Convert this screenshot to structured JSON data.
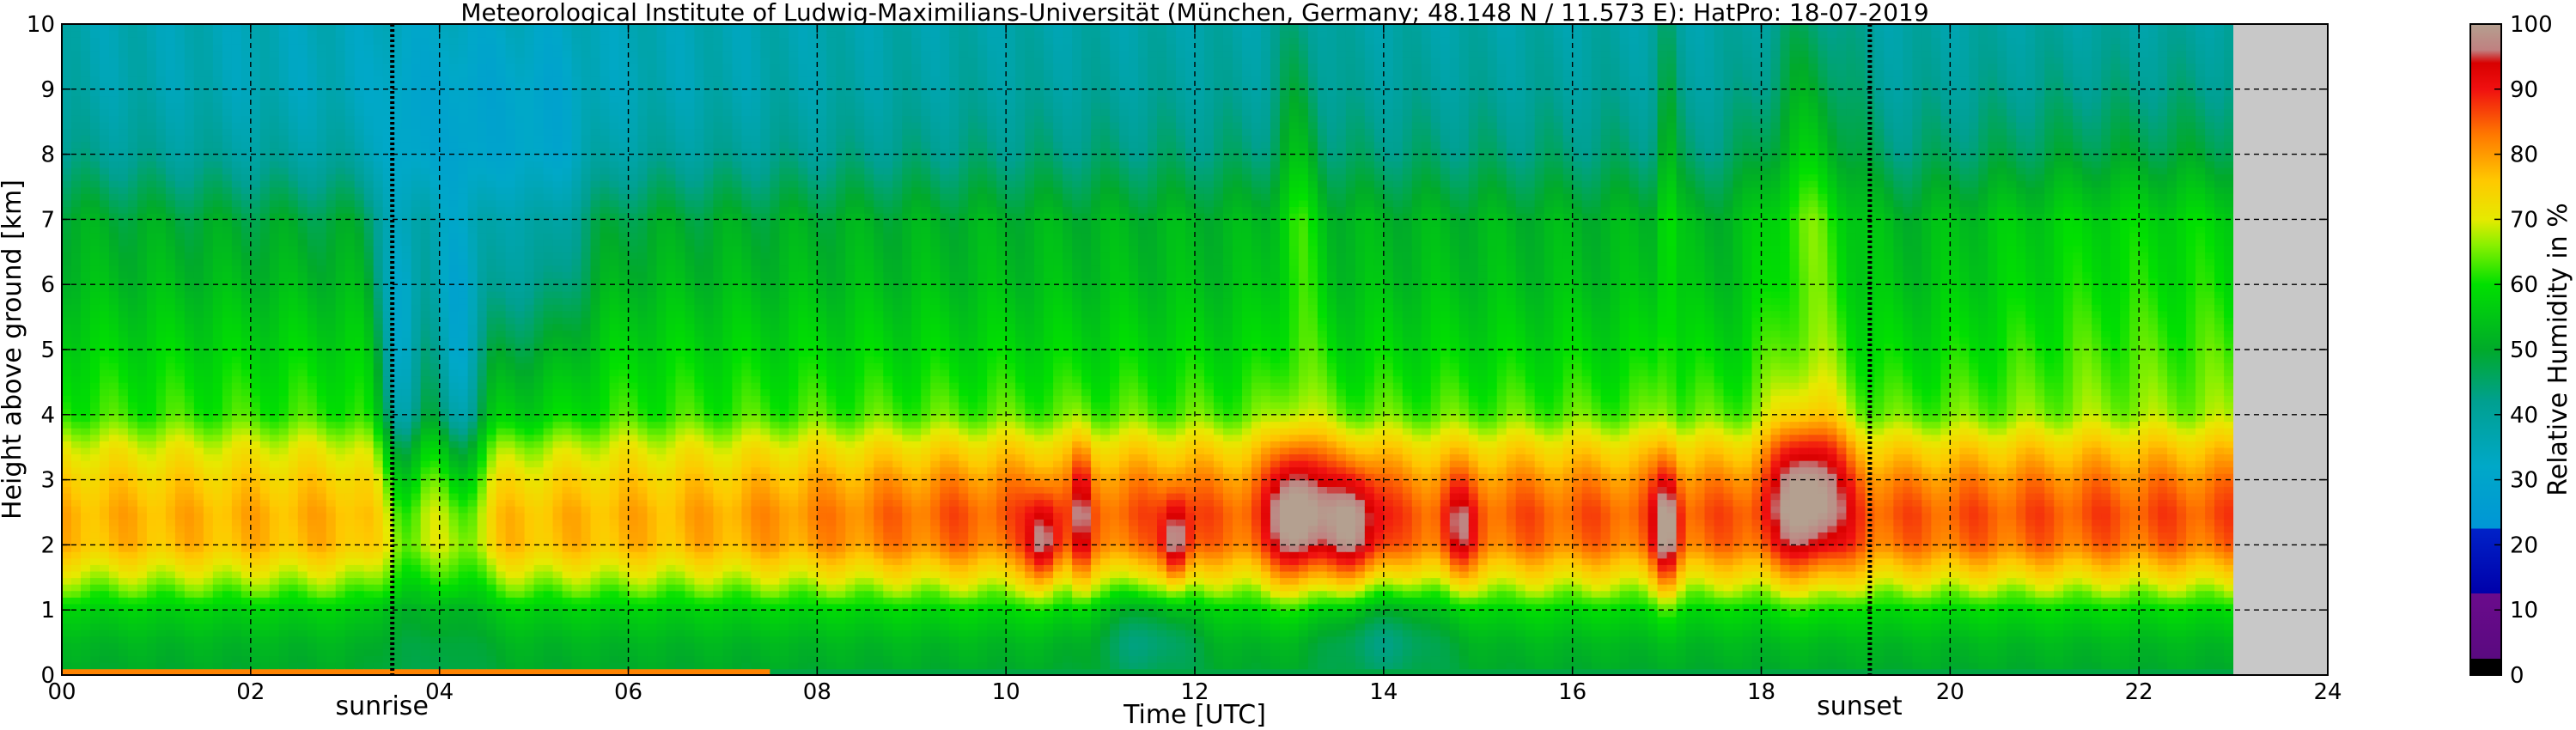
{
  "chart_data": {
    "type": "heatmap",
    "title": "Meteorological Institute of Ludwig-Maximilians-Universität (München, Germany; 48.148 N / 11.573 E):    HatPro: 18-07-2019",
    "xlabel": "Time [UTC]",
    "ylabel": "Height above ground [km]",
    "xlim": [
      0,
      24
    ],
    "ylim": [
      0,
      10
    ],
    "x_ticks": [
      "00",
      "02",
      "04",
      "06",
      "08",
      "10",
      "12",
      "14",
      "16",
      "18",
      "20",
      "22",
      "24"
    ],
    "y_ticks": [
      "0",
      "1",
      "2",
      "3",
      "4",
      "5",
      "6",
      "7",
      "8",
      "9",
      "10"
    ],
    "grid": true,
    "data_end_hour": 23.0,
    "markers": [
      {
        "label": "sunrise",
        "hour": 3.5
      },
      {
        "label": "sunset",
        "hour": 19.15
      }
    ],
    "colorbar": {
      "label": "Relative Humidity in %",
      "ticks": [
        "0",
        "10",
        "20",
        "30",
        "40",
        "50",
        "60",
        "70",
        "80",
        "90",
        "100"
      ],
      "range": [
        0,
        100
      ]
    },
    "humidity_profile": {
      "heights_km": [
        0.05,
        0.5,
        1.0,
        1.5,
        2.0,
        2.5,
        3.0,
        3.5,
        4.0,
        5.0,
        6.0,
        7.0,
        8.0,
        9.0,
        10.0
      ],
      "typical_rh_percent": [
        50,
        52,
        57,
        68,
        77,
        78,
        75,
        70,
        62,
        58,
        54,
        52,
        44,
        40,
        38
      ]
    },
    "events": [
      {
        "hour": 3.6,
        "effect": "dry column (30-45%) 2-8 km"
      },
      {
        "hour": 4.2,
        "effect": "dry column (30-45%) 2-8 km"
      },
      {
        "hour": 10.4,
        "effect": "RH ~90% near 2 km"
      },
      {
        "hour": 11.8,
        "effect": "RH ~90% near 2 km"
      },
      {
        "hour": 13.1,
        "effect": "RH ~90% 1.5-3.5 km"
      },
      {
        "hour": 13.7,
        "effect": "RH ~90% 1.5-3 km"
      },
      {
        "hour": 17.0,
        "effect": "RH ~90% near 2 km"
      },
      {
        "hour": 18.5,
        "effect": "RH ~90% 2-4 km, moist upper column"
      }
    ]
  }
}
